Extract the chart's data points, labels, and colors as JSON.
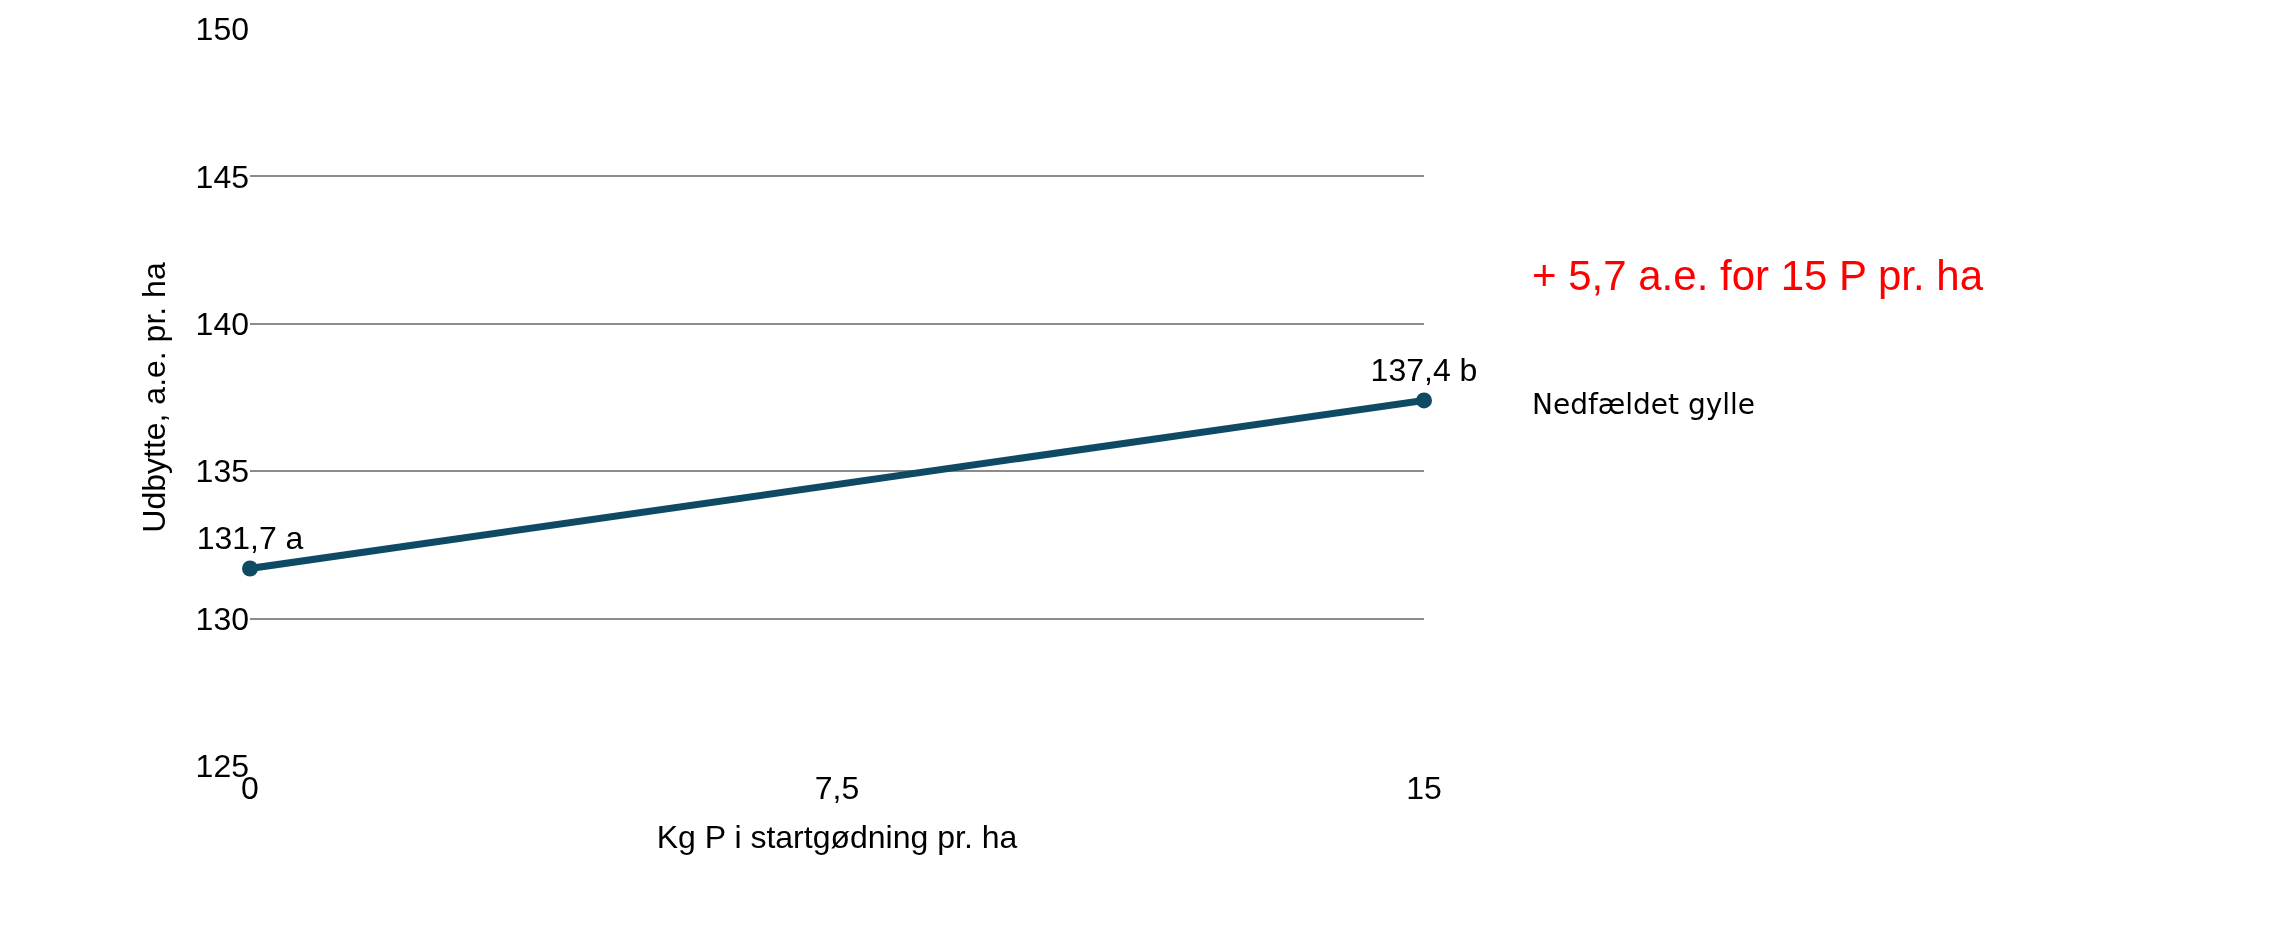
{
  "chart_data": {
    "type": "line",
    "xlabel": "Kg P i startgødning pr. ha",
    "ylabel": "Udbytte, a.e. pr. ha",
    "x": [
      0,
      15
    ],
    "series": [
      {
        "color": "#0e4a63",
        "values": [
          131.7,
          137.4
        ],
        "value_labels": [
          "131,7 a",
          "137,4 b"
        ]
      }
    ],
    "xlim": [
      0,
      15
    ],
    "xticks": [
      0,
      {
        "value": 7.5,
        "label": "7,5"
      },
      15
    ],
    "ylim": [
      125,
      150
    ],
    "yticks": [
      125,
      130,
      135,
      140,
      145,
      150
    ],
    "grid": "y",
    "marker": "circle",
    "line_style": "solid",
    "legend": false,
    "annotations": [
      "+ 5,7 a.e. for 15 P pr. ha",
      "Nedfældet gylle"
    ]
  }
}
